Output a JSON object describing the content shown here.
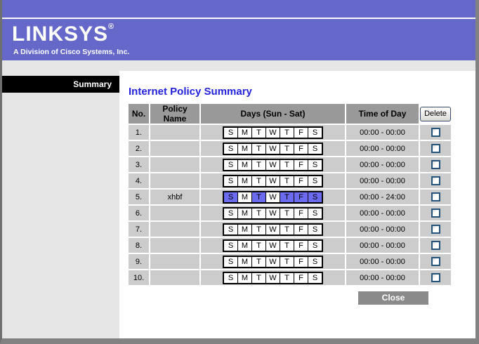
{
  "brand": {
    "logo": "LINKSYS",
    "registered": "®",
    "tagline": "A Division of Cisco Systems, Inc."
  },
  "sidebar": {
    "summary_label": "Summary"
  },
  "main": {
    "title": "Internet Policy Summary",
    "close_label": "Close",
    "table": {
      "headers": {
        "no": "No.",
        "policy_name": "Policy Name",
        "days": "Days (Sun - Sat)",
        "time_of_day": "Time of Day"
      },
      "delete_button_label": "Delete",
      "day_labels": [
        "S",
        "M",
        "T",
        "W",
        "T",
        "F",
        "S"
      ],
      "rows": [
        {
          "no": "1.",
          "policy_name": "",
          "active_days": [
            false,
            false,
            false,
            false,
            false,
            false,
            false
          ],
          "time_of_day": "00:00 - 00:00"
        },
        {
          "no": "2.",
          "policy_name": "",
          "active_days": [
            false,
            false,
            false,
            false,
            false,
            false,
            false
          ],
          "time_of_day": "00:00 - 00:00"
        },
        {
          "no": "3.",
          "policy_name": "",
          "active_days": [
            false,
            false,
            false,
            false,
            false,
            false,
            false
          ],
          "time_of_day": "00:00 - 00:00"
        },
        {
          "no": "4.",
          "policy_name": "",
          "active_days": [
            false,
            false,
            false,
            false,
            false,
            false,
            false
          ],
          "time_of_day": "00:00 - 00:00"
        },
        {
          "no": "5.",
          "policy_name": "xhbf",
          "active_days": [
            true,
            false,
            true,
            false,
            true,
            true,
            true
          ],
          "time_of_day": "00:00 - 24:00"
        },
        {
          "no": "6.",
          "policy_name": "",
          "active_days": [
            false,
            false,
            false,
            false,
            false,
            false,
            false
          ],
          "time_of_day": "00:00 - 00:00"
        },
        {
          "no": "7.",
          "policy_name": "",
          "active_days": [
            false,
            false,
            false,
            false,
            false,
            false,
            false
          ],
          "time_of_day": "00:00 - 00:00"
        },
        {
          "no": "8.",
          "policy_name": "",
          "active_days": [
            false,
            false,
            false,
            false,
            false,
            false,
            false
          ],
          "time_of_day": "00:00 - 00:00"
        },
        {
          "no": "9.",
          "policy_name": "",
          "active_days": [
            false,
            false,
            false,
            false,
            false,
            false,
            false
          ],
          "time_of_day": "00:00 - 00:00"
        },
        {
          "no": "10.",
          "policy_name": "",
          "active_days": [
            false,
            false,
            false,
            false,
            false,
            false,
            false
          ],
          "time_of_day": "00:00 - 00:00"
        }
      ]
    }
  },
  "colors": {
    "header_purple": "#6567c9",
    "day_active": "#6b6bef",
    "table_header_gray": "#999999",
    "row_gray": "#cccccc",
    "sidebar_gray": "#e6e6e6",
    "title_blue": "#2222dd",
    "close_gray": "#8a8a8a"
  }
}
